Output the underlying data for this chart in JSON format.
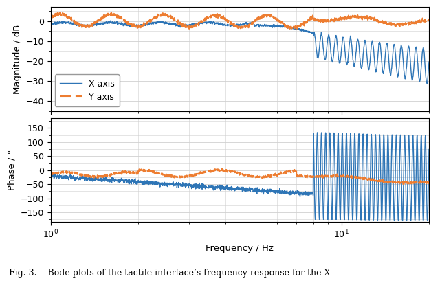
{
  "xlabel": "Frequency / Hz",
  "ylabel_mag": "Magnitude / dB",
  "ylabel_phase": "Phase / °",
  "legend_x": "X axis",
  "legend_y": "Y axis",
  "color_x": "#2e75b6",
  "color_y": "#ed7d31",
  "xlim": [
    1.0,
    20.0
  ],
  "mag_ylim": [
    -45,
    7
  ],
  "phase_ylim": [
    -185,
    185
  ],
  "mag_yticks": [
    0,
    -10,
    -20,
    -30,
    -40
  ],
  "phase_yticks": [
    -150,
    -100,
    -50,
    0,
    50,
    100,
    150
  ],
  "caption": "Fig. 3.    Bode plots of the tactile interface’s frequency response for the X",
  "background": "#ffffff",
  "grid_color": "#d0d0d0"
}
